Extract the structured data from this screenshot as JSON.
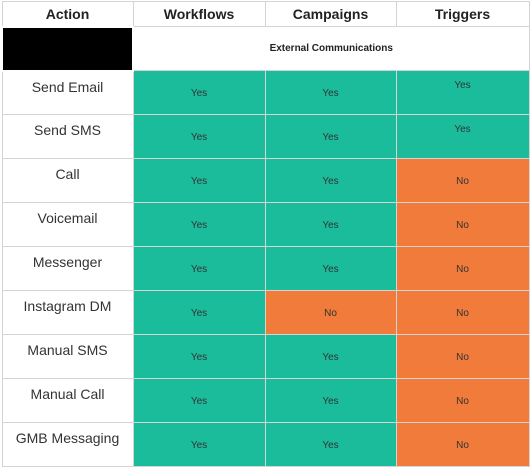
{
  "headers": [
    "Action",
    "Workflows",
    "Campaigns",
    "Triggers"
  ],
  "section_label": "External Communications",
  "colors": {
    "yes": "#1abc9c",
    "no": "#f07b3a"
  },
  "rows": [
    {
      "action": "Send Email",
      "workflows": "Yes",
      "campaigns": "Yes",
      "triggers": "Yes"
    },
    {
      "action": "Send SMS",
      "workflows": "Yes",
      "campaigns": "Yes",
      "triggers": "Yes"
    },
    {
      "action": "Call",
      "workflows": "Yes",
      "campaigns": "Yes",
      "triggers": "No"
    },
    {
      "action": "Voicemail",
      "workflows": "Yes",
      "campaigns": "Yes",
      "triggers": "No"
    },
    {
      "action": "Messenger",
      "workflows": "Yes",
      "campaigns": "Yes",
      "triggers": "No"
    },
    {
      "action": "Instagram DM",
      "workflows": "Yes",
      "campaigns": "No",
      "triggers": "No"
    },
    {
      "action": "Manual SMS",
      "workflows": "Yes",
      "campaigns": "Yes",
      "triggers": "No"
    },
    {
      "action": "Manual Call",
      "workflows": "Yes",
      "campaigns": "Yes",
      "triggers": "No"
    },
    {
      "action": "GMB Messaging",
      "workflows": "Yes",
      "campaigns": "Yes",
      "triggers": "No"
    }
  ]
}
